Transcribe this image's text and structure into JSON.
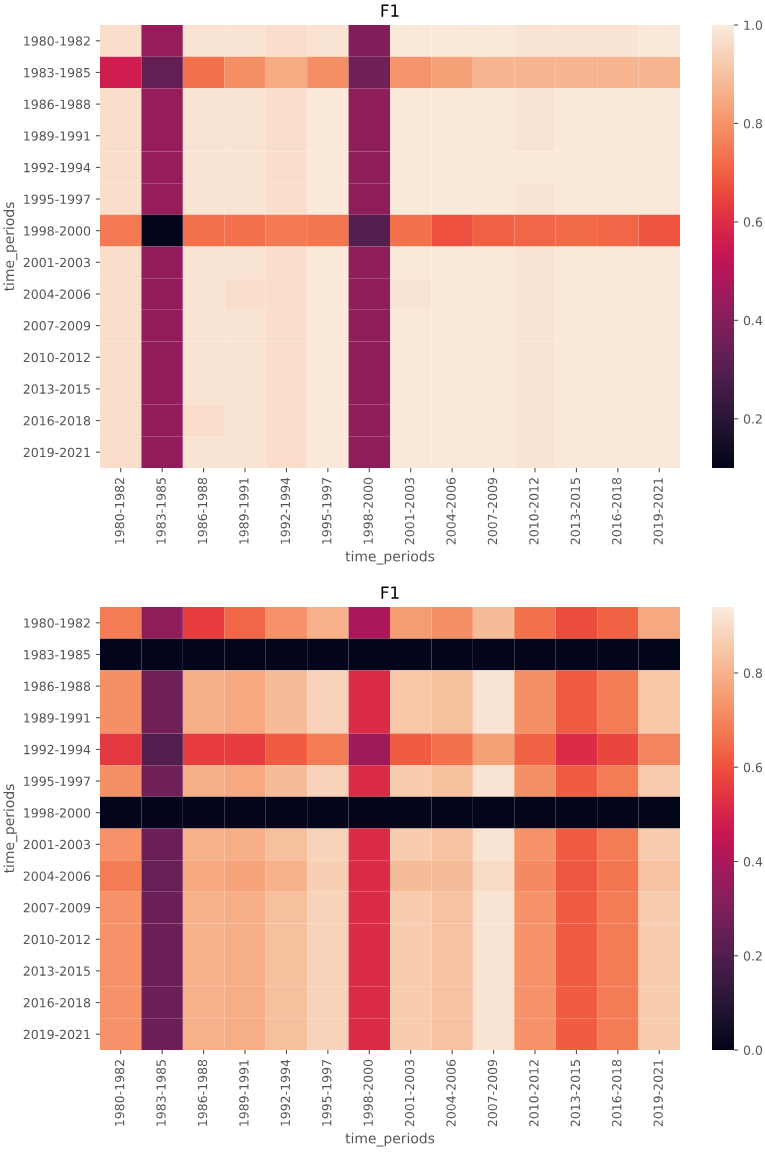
{
  "chart_data": [
    {
      "type": "heatmap",
      "title": "F1",
      "xlabel": "time_periods",
      "ylabel": "time_periods",
      "categories": [
        "1980-1982",
        "1983-1985",
        "1986-1988",
        "1989-1991",
        "1992-1994",
        "1995-1997",
        "1998-2000",
        "2001-2003",
        "2004-2006",
        "2007-2009",
        "2010-2012",
        "2013-2015",
        "2016-2018",
        "2019-2021"
      ],
      "y_categories": [
        "1980-1982",
        "1983-1985",
        "1986-1988",
        "1989-1991",
        "1992-1994",
        "1995-1997",
        "1998-2000",
        "2001-2003",
        "2004-2006",
        "2007-2009",
        "2010-2012",
        "2013-2015",
        "2016-2018",
        "2019-2021"
      ],
      "cells": [
        [
          0.97,
          0.44,
          0.98,
          0.98,
          0.97,
          0.98,
          0.4,
          0.99,
          0.99,
          0.99,
          0.98,
          0.98,
          0.98,
          0.99
        ],
        [
          0.56,
          0.33,
          0.73,
          0.79,
          0.85,
          0.79,
          0.36,
          0.8,
          0.83,
          0.87,
          0.87,
          0.87,
          0.87,
          0.87
        ],
        [
          0.97,
          0.44,
          0.98,
          0.98,
          0.97,
          0.99,
          0.42,
          0.99,
          0.99,
          0.99,
          0.98,
          0.99,
          0.99,
          0.99
        ],
        [
          0.97,
          0.44,
          0.98,
          0.98,
          0.97,
          0.99,
          0.42,
          0.99,
          0.99,
          0.99,
          0.98,
          0.99,
          0.99,
          0.99
        ],
        [
          0.97,
          0.44,
          0.98,
          0.98,
          0.97,
          0.99,
          0.42,
          0.99,
          0.99,
          0.99,
          0.99,
          0.99,
          0.99,
          0.99
        ],
        [
          0.97,
          0.44,
          0.98,
          0.98,
          0.97,
          0.99,
          0.42,
          0.99,
          0.99,
          0.99,
          0.98,
          0.99,
          0.99,
          0.99
        ],
        [
          0.75,
          0.1,
          0.73,
          0.73,
          0.75,
          0.74,
          0.3,
          0.73,
          0.67,
          0.7,
          0.71,
          0.72,
          0.71,
          0.68
        ],
        [
          0.97,
          0.43,
          0.98,
          0.98,
          0.97,
          0.99,
          0.42,
          0.99,
          0.99,
          0.99,
          0.98,
          0.99,
          0.99,
          0.99
        ],
        [
          0.97,
          0.43,
          0.98,
          0.97,
          0.97,
          0.99,
          0.42,
          0.98,
          0.99,
          0.99,
          0.98,
          0.99,
          0.99,
          0.99
        ],
        [
          0.97,
          0.43,
          0.98,
          0.98,
          0.97,
          0.99,
          0.42,
          0.99,
          0.99,
          0.99,
          0.98,
          0.99,
          0.99,
          0.99
        ],
        [
          0.97,
          0.43,
          0.98,
          0.98,
          0.97,
          0.99,
          0.42,
          0.99,
          0.99,
          0.99,
          0.98,
          0.99,
          0.99,
          0.99
        ],
        [
          0.97,
          0.43,
          0.98,
          0.98,
          0.97,
          0.99,
          0.42,
          0.99,
          0.99,
          0.99,
          0.98,
          0.99,
          0.99,
          0.99
        ],
        [
          0.97,
          0.43,
          0.97,
          0.98,
          0.97,
          0.99,
          0.42,
          0.99,
          0.99,
          0.99,
          0.98,
          0.99,
          0.99,
          0.99
        ],
        [
          0.97,
          0.43,
          0.98,
          0.98,
          0.97,
          0.99,
          0.42,
          0.99,
          0.99,
          0.99,
          0.98,
          0.99,
          0.99,
          0.99
        ]
      ],
      "clim": [
        0.1,
        1.0
      ],
      "cticks": [
        0.2,
        0.4,
        0.6,
        0.8,
        {
          "value": 1,
          "label": "1.0"
        }
      ]
    },
    {
      "type": "heatmap",
      "title": "F1",
      "xlabel": "time_periods",
      "ylabel": "time_periods",
      "categories": [
        "1980-1982",
        "1983-1985",
        "1986-1988",
        "1989-1991",
        "1992-1994",
        "1995-1997",
        "1998-2000",
        "2001-2003",
        "2004-2006",
        "2007-2009",
        "2010-2012",
        "2013-2015",
        "2016-2018",
        "2019-2021"
      ],
      "y_categories": [
        "1980-1982",
        "1983-1985",
        "1986-1988",
        "1989-1991",
        "1992-1994",
        "1995-1997",
        "1998-2000",
        "2001-2003",
        "2004-2006",
        "2007-2009",
        "2010-2012",
        "2013-2015",
        "2016-2018",
        "2019-2021"
      ],
      "cells": [
        [
          0.68,
          0.34,
          0.56,
          0.64,
          0.73,
          0.8,
          0.4,
          0.75,
          0.72,
          0.82,
          0.66,
          0.59,
          0.63,
          0.78
        ],
        [
          0.0,
          0.0,
          0.0,
          0.0,
          0.0,
          0.0,
          0.0,
          0.0,
          0.0,
          0.0,
          0.0,
          0.0,
          0.0,
          0.0
        ],
        [
          0.72,
          0.27,
          0.79,
          0.78,
          0.82,
          0.88,
          0.52,
          0.85,
          0.83,
          0.92,
          0.72,
          0.62,
          0.68,
          0.85
        ],
        [
          0.72,
          0.27,
          0.79,
          0.78,
          0.82,
          0.88,
          0.52,
          0.85,
          0.83,
          0.92,
          0.72,
          0.62,
          0.68,
          0.85
        ],
        [
          0.55,
          0.2,
          0.56,
          0.56,
          0.62,
          0.68,
          0.37,
          0.62,
          0.66,
          0.76,
          0.63,
          0.52,
          0.58,
          0.7
        ],
        [
          0.72,
          0.27,
          0.79,
          0.78,
          0.82,
          0.88,
          0.52,
          0.86,
          0.83,
          0.92,
          0.72,
          0.62,
          0.68,
          0.86
        ],
        [
          0.0,
          0.0,
          0.0,
          0.0,
          0.0,
          0.0,
          0.0,
          0.0,
          0.0,
          0.0,
          0.0,
          0.0,
          0.0,
          0.0
        ],
        [
          0.73,
          0.26,
          0.8,
          0.79,
          0.83,
          0.88,
          0.52,
          0.86,
          0.84,
          0.92,
          0.73,
          0.62,
          0.68,
          0.86
        ],
        [
          0.68,
          0.25,
          0.78,
          0.77,
          0.8,
          0.87,
          0.52,
          0.82,
          0.82,
          0.9,
          0.71,
          0.61,
          0.67,
          0.84
        ],
        [
          0.73,
          0.26,
          0.8,
          0.79,
          0.83,
          0.88,
          0.52,
          0.86,
          0.84,
          0.92,
          0.73,
          0.62,
          0.68,
          0.86
        ],
        [
          0.73,
          0.26,
          0.8,
          0.79,
          0.83,
          0.88,
          0.52,
          0.86,
          0.84,
          0.92,
          0.73,
          0.62,
          0.68,
          0.86
        ],
        [
          0.73,
          0.26,
          0.8,
          0.79,
          0.83,
          0.88,
          0.52,
          0.86,
          0.84,
          0.92,
          0.73,
          0.62,
          0.68,
          0.86
        ],
        [
          0.73,
          0.26,
          0.8,
          0.79,
          0.83,
          0.88,
          0.52,
          0.86,
          0.84,
          0.92,
          0.73,
          0.62,
          0.68,
          0.86
        ],
        [
          0.73,
          0.26,
          0.8,
          0.79,
          0.83,
          0.88,
          0.52,
          0.86,
          0.84,
          0.92,
          0.73,
          0.62,
          0.68,
          0.86
        ]
      ],
      "clim": [
        0.0,
        0.94
      ],
      "cticks": [
        {
          "value": 0,
          "label": "0.0"
        },
        0.2,
        0.4,
        0.6,
        0.8
      ]
    }
  ]
}
